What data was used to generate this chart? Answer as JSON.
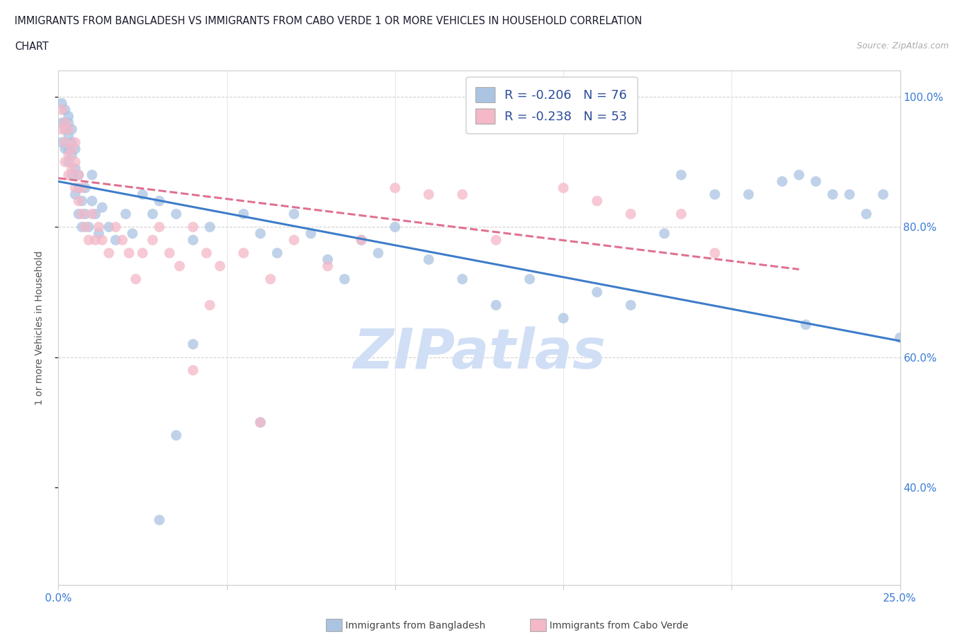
{
  "title_line1": "IMMIGRANTS FROM BANGLADESH VS IMMIGRANTS FROM CABO VERDE 1 OR MORE VEHICLES IN HOUSEHOLD CORRELATION",
  "title_line2": "CHART",
  "source_text": "Source: ZipAtlas.com",
  "ylabel": "1 or more Vehicles in Household",
  "xlim": [
    0.0,
    0.25
  ],
  "ylim": [
    0.25,
    1.04
  ],
  "bangladesh_color": "#aac4e2",
  "caboverde_color": "#f4b8c8",
  "bangladesh_line_color": "#3d7cc9",
  "caboverde_line_color": "#e07090",
  "legend_text_color": "#2b4c9b",
  "tick_label_color": "#3a7bd5",
  "R_bangladesh": -0.206,
  "N_bangladesh": 76,
  "R_caboverde": -0.238,
  "N_caboverde": 53,
  "watermark_color": "#d0dff5",
  "background_color": "#ffffff",
  "grid_color": "#e0e0e0",
  "bd_trend_x0": 0.0,
  "bd_trend_y0": 0.87,
  "bd_trend_x1": 0.25,
  "bd_trend_y1": 0.625,
  "cv_trend_x0": 0.0,
  "cv_trend_y0": 0.875,
  "cv_trend_x1": 0.22,
  "cv_trend_y1": 0.735,
  "bangladesh_x": [
    0.001,
    0.001,
    0.001,
    0.002,
    0.002,
    0.002,
    0.002,
    0.003,
    0.003,
    0.003,
    0.003,
    0.003,
    0.004,
    0.004,
    0.004,
    0.004,
    0.005,
    0.005,
    0.005,
    0.006,
    0.006,
    0.006,
    0.007,
    0.007,
    0.008,
    0.008,
    0.009,
    0.01,
    0.01,
    0.011,
    0.012,
    0.013,
    0.015,
    0.017,
    0.02,
    0.022,
    0.025,
    0.028,
    0.03,
    0.035,
    0.04,
    0.045,
    0.055,
    0.06,
    0.065,
    0.07,
    0.075,
    0.08,
    0.085,
    0.09,
    0.095,
    0.1,
    0.11,
    0.12,
    0.13,
    0.14,
    0.15,
    0.16,
    0.17,
    0.185,
    0.195,
    0.205,
    0.215,
    0.22,
    0.225,
    0.23,
    0.235,
    0.24,
    0.245,
    0.25,
    0.222,
    0.18,
    0.06,
    0.035,
    0.04,
    0.03
  ],
  "bangladesh_y": [
    0.96,
    0.93,
    0.99,
    0.95,
    0.92,
    0.98,
    0.96,
    0.94,
    0.97,
    0.92,
    0.9,
    0.96,
    0.91,
    0.88,
    0.93,
    0.95,
    0.89,
    0.85,
    0.92,
    0.86,
    0.82,
    0.88,
    0.84,
    0.8,
    0.82,
    0.86,
    0.8,
    0.84,
    0.88,
    0.82,
    0.79,
    0.83,
    0.8,
    0.78,
    0.82,
    0.79,
    0.85,
    0.82,
    0.84,
    0.82,
    0.78,
    0.8,
    0.82,
    0.79,
    0.76,
    0.82,
    0.79,
    0.75,
    0.72,
    0.78,
    0.76,
    0.8,
    0.75,
    0.72,
    0.68,
    0.72,
    0.66,
    0.7,
    0.68,
    0.88,
    0.85,
    0.85,
    0.87,
    0.88,
    0.87,
    0.85,
    0.85,
    0.82,
    0.85,
    0.63,
    0.65,
    0.79,
    0.5,
    0.48,
    0.62,
    0.35
  ],
  "caboverde_x": [
    0.001,
    0.001,
    0.002,
    0.002,
    0.002,
    0.003,
    0.003,
    0.003,
    0.004,
    0.004,
    0.005,
    0.005,
    0.005,
    0.006,
    0.006,
    0.007,
    0.007,
    0.008,
    0.009,
    0.01,
    0.011,
    0.012,
    0.013,
    0.015,
    0.017,
    0.019,
    0.021,
    0.023,
    0.025,
    0.028,
    0.03,
    0.033,
    0.036,
    0.04,
    0.044,
    0.048,
    0.055,
    0.063,
    0.07,
    0.08,
    0.09,
    0.1,
    0.11,
    0.12,
    0.13,
    0.15,
    0.16,
    0.17,
    0.185,
    0.195,
    0.045,
    0.04,
    0.06
  ],
  "caboverde_y": [
    0.95,
    0.98,
    0.93,
    0.96,
    0.9,
    0.91,
    0.95,
    0.88,
    0.89,
    0.92,
    0.86,
    0.9,
    0.93,
    0.84,
    0.88,
    0.82,
    0.86,
    0.8,
    0.78,
    0.82,
    0.78,
    0.8,
    0.78,
    0.76,
    0.8,
    0.78,
    0.76,
    0.72,
    0.76,
    0.78,
    0.8,
    0.76,
    0.74,
    0.8,
    0.76,
    0.74,
    0.76,
    0.72,
    0.78,
    0.74,
    0.78,
    0.86,
    0.85,
    0.85,
    0.78,
    0.86,
    0.84,
    0.82,
    0.82,
    0.76,
    0.68,
    0.58,
    0.5
  ]
}
